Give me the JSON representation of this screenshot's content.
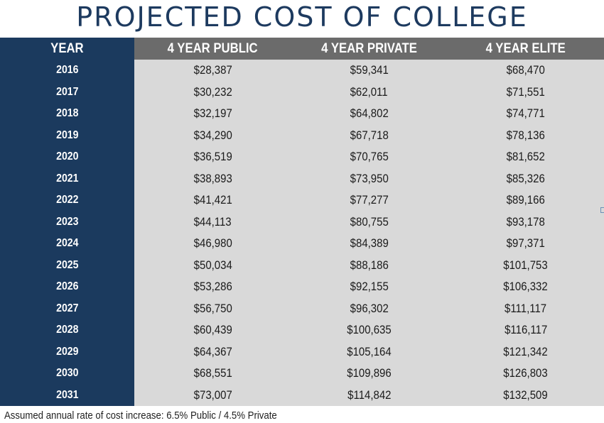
{
  "chart_data": {
    "type": "table",
    "title": "PROJECTED COST OF COLLEGE",
    "columns": [
      "YEAR",
      "4 YEAR PUBLIC",
      "4 YEAR PRIVATE",
      "4 YEAR ELITE"
    ],
    "rows": [
      [
        "2016",
        "$28,387",
        "$59,341",
        "$68,470"
      ],
      [
        "2017",
        "$30,232",
        "$62,011",
        "$71,551"
      ],
      [
        "2018",
        "$32,197",
        "$64,802",
        "$74,771"
      ],
      [
        "2019",
        "$34,290",
        "$67,718",
        "$78,136"
      ],
      [
        "2020",
        "$36,519",
        "$70,765",
        "$81,652"
      ],
      [
        "2021",
        "$38,893",
        "$73,950",
        "$85,326"
      ],
      [
        "2022",
        "$41,421",
        "$77,277",
        "$89,166"
      ],
      [
        "2023",
        "$44,113",
        "$80,755",
        "$93,178"
      ],
      [
        "2024",
        "$46,980",
        "$84,389",
        "$97,371"
      ],
      [
        "2025",
        "$50,034",
        "$88,186",
        "$101,753"
      ],
      [
        "2026",
        "$53,286",
        "$92,155",
        "$106,332"
      ],
      [
        "2027",
        "$56,750",
        "$96,302",
        "$111,117"
      ],
      [
        "2028",
        "$60,439",
        "$100,635",
        "$116,117"
      ],
      [
        "2029",
        "$64,367",
        "$105,164",
        "$121,342"
      ],
      [
        "2030",
        "$68,551",
        "$109,896",
        "$126,803"
      ],
      [
        "2031",
        "$73,007",
        "$114,842",
        "$132,509"
      ]
    ],
    "footnote": "Assumed annual rate of cost increase: 6.5% Public / 4.5% Private"
  },
  "colors": {
    "title": "#1d3a5f",
    "year_column": "#1b3a5e",
    "header": "#6b6b6b",
    "cells": "#d9d9d9"
  }
}
